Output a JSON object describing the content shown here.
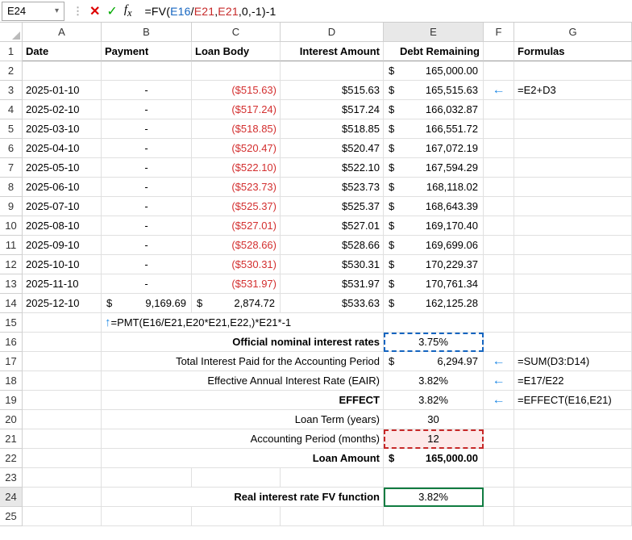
{
  "nameBox": "E24",
  "formula": {
    "prefix": "=FV(",
    "e16": "E16",
    "slash": "/",
    "e21a": "E21",
    "mid1": ",",
    "e21b": "E21",
    "tail": ",0,-1)-1"
  },
  "cols": [
    "A",
    "B",
    "C",
    "D",
    "E",
    "F",
    "G"
  ],
  "headers": {
    "A": "Date",
    "B": "Payment",
    "C": "Loan Body",
    "D": "Interest Amount",
    "E": "Debt Remaining",
    "F": "",
    "G": "Formulas"
  },
  "row2": {
    "E_sym": "$",
    "E_amt": "165,000.00"
  },
  "schedule": [
    {
      "r": 3,
      "date": "2025-01-10",
      "pay": "-",
      "loan": "($515.63)",
      "int": "$515.63",
      "debt_sym": "$",
      "debt": "165,515.63",
      "arrow": true,
      "formula": "=E2+D3"
    },
    {
      "r": 4,
      "date": "2025-02-10",
      "pay": "-",
      "loan": "($517.24)",
      "int": "$517.24",
      "debt_sym": "$",
      "debt": "166,032.87"
    },
    {
      "r": 5,
      "date": "2025-03-10",
      "pay": "-",
      "loan": "($518.85)",
      "int": "$518.85",
      "debt_sym": "$",
      "debt": "166,551.72"
    },
    {
      "r": 6,
      "date": "2025-04-10",
      "pay": "-",
      "loan": "($520.47)",
      "int": "$520.47",
      "debt_sym": "$",
      "debt": "167,072.19"
    },
    {
      "r": 7,
      "date": "2025-05-10",
      "pay": "-",
      "loan": "($522.10)",
      "int": "$522.10",
      "debt_sym": "$",
      "debt": "167,594.29"
    },
    {
      "r": 8,
      "date": "2025-06-10",
      "pay": "-",
      "loan": "($523.73)",
      "int": "$523.73",
      "debt_sym": "$",
      "debt": "168,118.02"
    },
    {
      "r": 9,
      "date": "2025-07-10",
      "pay": "-",
      "loan": "($525.37)",
      "int": "$525.37",
      "debt_sym": "$",
      "debt": "168,643.39"
    },
    {
      "r": 10,
      "date": "2025-08-10",
      "pay": "-",
      "loan": "($527.01)",
      "int": "$527.01",
      "debt_sym": "$",
      "debt": "169,170.40"
    },
    {
      "r": 11,
      "date": "2025-09-10",
      "pay": "-",
      "loan": "($528.66)",
      "int": "$528.66",
      "debt_sym": "$",
      "debt": "169,699.06"
    },
    {
      "r": 12,
      "date": "2025-10-10",
      "pay": "-",
      "loan": "($530.31)",
      "int": "$530.31",
      "debt_sym": "$",
      "debt": "170,229.37"
    },
    {
      "r": 13,
      "date": "2025-11-10",
      "pay": "-",
      "loan": "($531.97)",
      "int": "$531.97",
      "debt_sym": "$",
      "debt": "170,761.34"
    }
  ],
  "row14": {
    "date": "2025-12-10",
    "pay_sym": "$",
    "pay": "9,169.69",
    "loan_sym": "$",
    "loan": "2,874.72",
    "int": "$533.63",
    "debt_sym": "$",
    "debt": "162,125.28"
  },
  "row15": {
    "pmt": "=PMT(E16/E21,E20*E21,E22,)*E21*-1"
  },
  "row16": {
    "label": "Official nominal interest rates",
    "val": "3.75%"
  },
  "row17": {
    "label": "Total Interest Paid for the Accounting Period",
    "val_sym": "$",
    "val": "6,294.97",
    "formula": "=SUM(D3:D14)"
  },
  "row18": {
    "label": "Effective Annual Interest Rate (EAIR)",
    "val": "3.82%",
    "formula": "=E17/E22"
  },
  "row19": {
    "label": "EFFECT",
    "val": "3.82%",
    "formula": "=EFFECT(E16,E21)"
  },
  "row20": {
    "label": "Loan Term (years)",
    "val": "30"
  },
  "row21": {
    "label": "Accounting Period (months)",
    "val": "12"
  },
  "row22": {
    "label": "Loan Amount",
    "val_sym": "$",
    "val": "165,000.00"
  },
  "row24": {
    "label": "Real interest rate FV function",
    "val": "3.82%"
  },
  "arrows": {
    "left": "←",
    "up": "↑"
  }
}
